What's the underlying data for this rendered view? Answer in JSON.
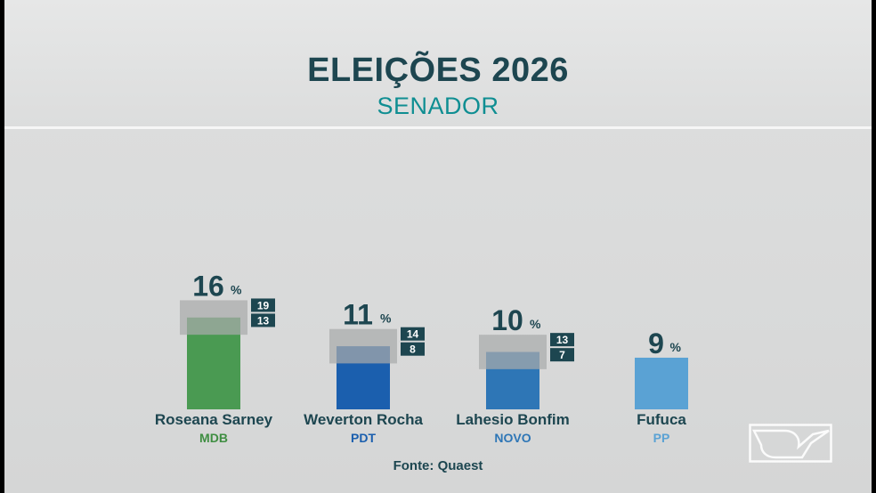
{
  "header": {
    "title": "ELEIÇÕES 2026",
    "subtitle": "SENADOR"
  },
  "source": "Fonte: Quaest",
  "colors": {
    "title": "#1d4650",
    "subtitle": "#0f8e92",
    "range_band": "#a9aaaa",
    "range_box": "#1d4650"
  },
  "chart_data": {
    "type": "bar",
    "categories": [
      "Roseana Sarney",
      "Weverton Rocha",
      "Lahesio Bonfim",
      "Fufuca"
    ],
    "parties": [
      "MDB",
      "PDT",
      "NOVO",
      "PP"
    ],
    "values": [
      16,
      11,
      10,
      9
    ],
    "value_suffix": "%",
    "ranges": [
      {
        "high": 19,
        "low": 13
      },
      {
        "high": 14,
        "low": 8
      },
      {
        "high": 13,
        "low": 7
      },
      null
    ],
    "bar_colors": [
      "#4a9a52",
      "#1b5fae",
      "#2e76b6",
      "#5aa2d4"
    ],
    "party_colors": [
      "#3f8e42",
      "#1b5fae",
      "#2e76b6",
      "#5aa2d4"
    ],
    "ylim": [
      0,
      20
    ],
    "grid": false
  }
}
